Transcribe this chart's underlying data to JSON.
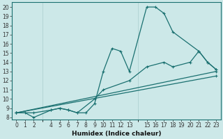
{
  "xlabel": "Humidex (Indice chaleur)",
  "bg_color": "#cce8e8",
  "line_color": "#1a7070",
  "grid_color": "#aacece",
  "ylim": [
    7.8,
    20.5
  ],
  "xlim": [
    -0.5,
    23.5
  ],
  "yticks": [
    8,
    9,
    10,
    11,
    12,
    13,
    14,
    15,
    16,
    17,
    18,
    19,
    20
  ],
  "xticks": [
    0,
    1,
    2,
    4,
    5,
    6,
    7,
    8,
    9,
    10,
    11,
    12,
    13,
    15,
    16,
    17,
    18,
    19,
    20,
    21,
    22,
    23
  ],
  "line1_x": [
    0,
    1,
    2,
    4,
    5,
    6,
    7,
    8,
    9,
    10,
    11,
    12,
    13,
    15,
    16,
    17,
    18,
    21,
    22,
    23
  ],
  "line1_y": [
    8.5,
    8.5,
    8.0,
    8.8,
    9.0,
    8.8,
    8.5,
    8.5,
    9.5,
    13.0,
    15.5,
    15.2,
    13.0,
    20.0,
    20.0,
    19.3,
    17.3,
    15.2,
    14.0,
    13.2
  ],
  "line2_x": [
    0,
    2,
    4,
    5,
    6,
    7,
    9,
    10,
    13,
    15,
    17,
    18,
    20,
    21,
    22,
    23
  ],
  "line2_y": [
    8.5,
    8.5,
    8.8,
    9.0,
    8.8,
    8.5,
    10.0,
    11.0,
    12.0,
    13.5,
    14.0,
    13.5,
    14.0,
    15.2,
    14.0,
    13.2
  ],
  "line3_x": [
    0,
    23
  ],
  "line3_y": [
    8.5,
    13.0
  ],
  "line4_x": [
    0,
    23
  ],
  "line4_y": [
    8.5,
    12.5
  ],
  "tick_fontsize": 5.5,
  "label_fontsize": 6.5
}
